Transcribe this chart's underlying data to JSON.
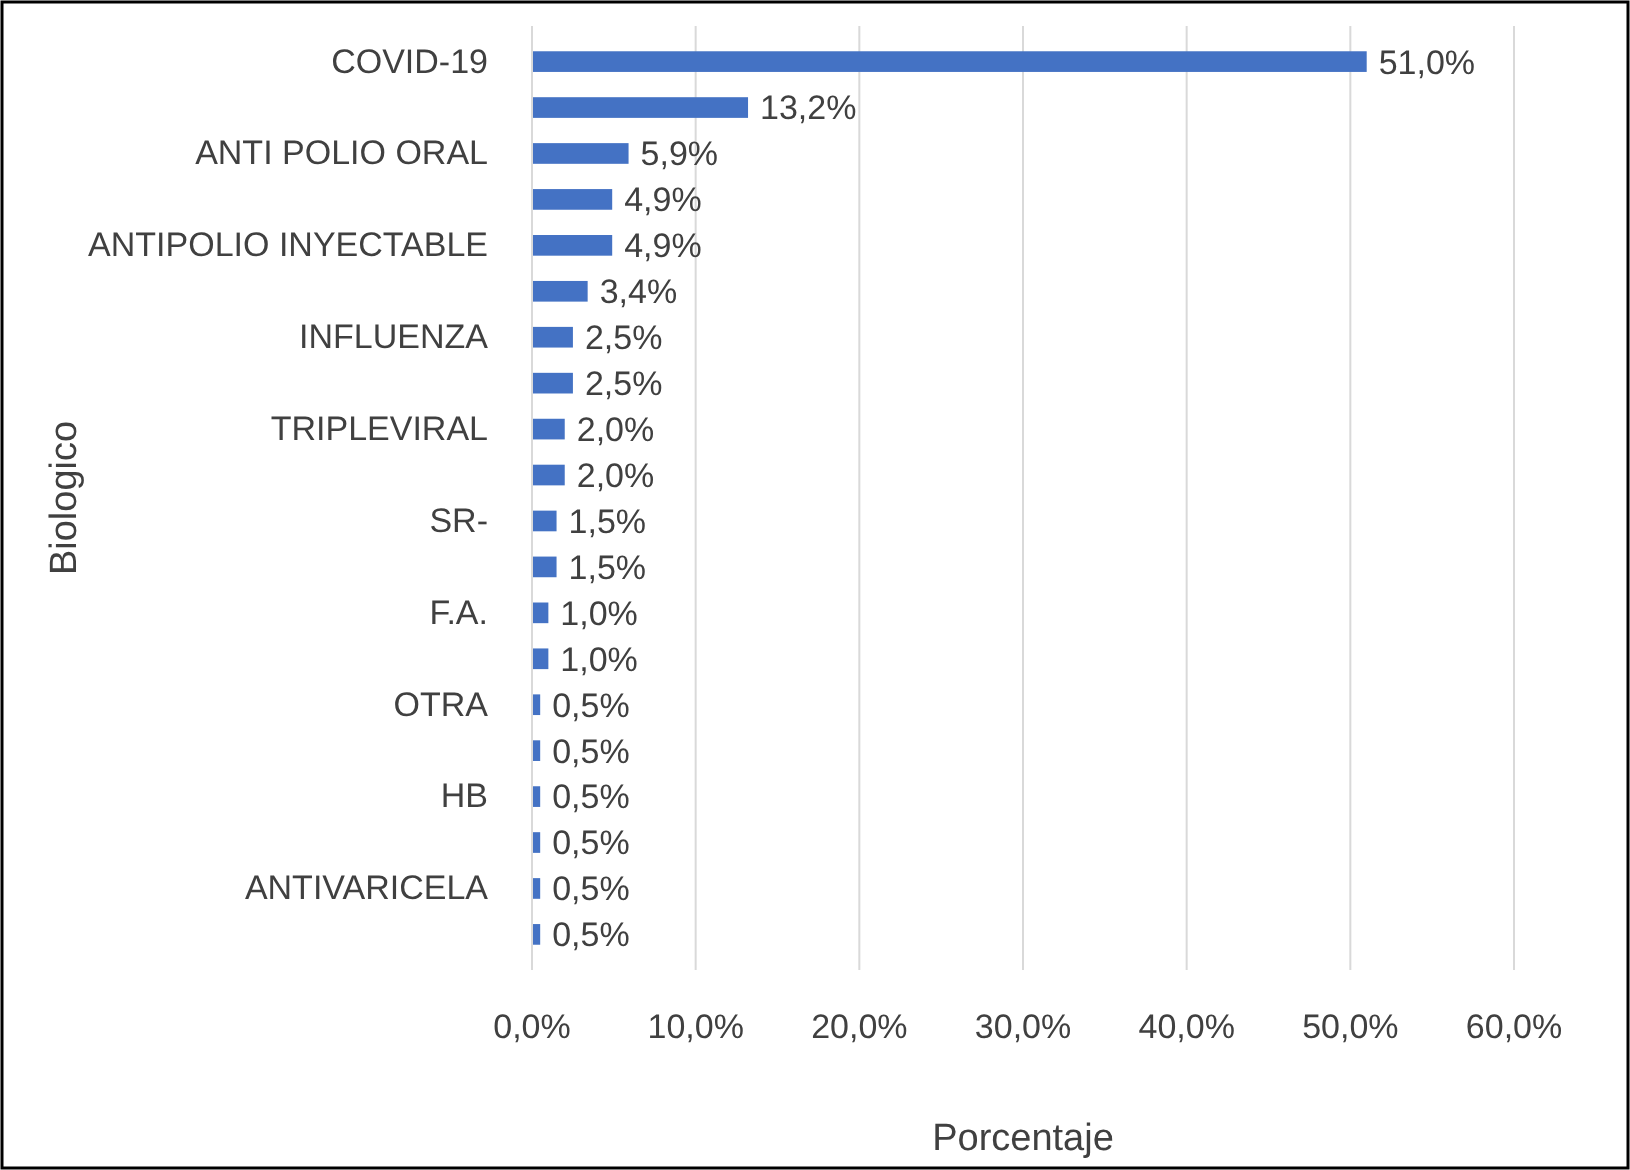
{
  "chart_data": {
    "type": "bar",
    "orientation": "horizontal",
    "xlabel": "Porcentaje",
    "ylabel": "Biologico",
    "categories": [
      "COVID-19",
      null,
      "ANTI POLIO ORAL",
      null,
      "ANTIPOLIO INYECTABLE",
      null,
      "INFLUENZA",
      null,
      "TRIPLEVIRAL",
      null,
      "SR-",
      null,
      "F.A.",
      null,
      "OTRA",
      null,
      "HB",
      null,
      "ANTIVARICELA",
      null
    ],
    "values": [
      51.0,
      13.2,
      5.9,
      4.9,
      4.9,
      3.4,
      2.5,
      2.5,
      2.0,
      2.0,
      1.5,
      1.5,
      1.0,
      1.0,
      0.5,
      0.5,
      0.5,
      0.5,
      0.5,
      0.5
    ],
    "value_labels": [
      "51,0%",
      "13,2%",
      "5,9%",
      "4,9%",
      "4,9%",
      "3,4%",
      "2,5%",
      "2,5%",
      "2,0%",
      "2,0%",
      "1,5%",
      "1,5%",
      "1,0%",
      "1,0%",
      "0,5%",
      "0,5%",
      "0,5%",
      "0,5%",
      "0,5%",
      "0,5%"
    ],
    "color": "#4472c4",
    "xlim": [
      0,
      60
    ],
    "xticks": [
      {
        "value": 0,
        "label": "0,0%"
      },
      {
        "value": 10,
        "label": "10,0%"
      },
      {
        "value": 20,
        "label": "20,0%"
      },
      {
        "value": 30,
        "label": "30,0%"
      },
      {
        "value": 40,
        "label": "40,0%"
      },
      {
        "value": 50,
        "label": "50,0%"
      },
      {
        "value": 60,
        "label": "60,0%"
      }
    ],
    "grid": "x"
  }
}
